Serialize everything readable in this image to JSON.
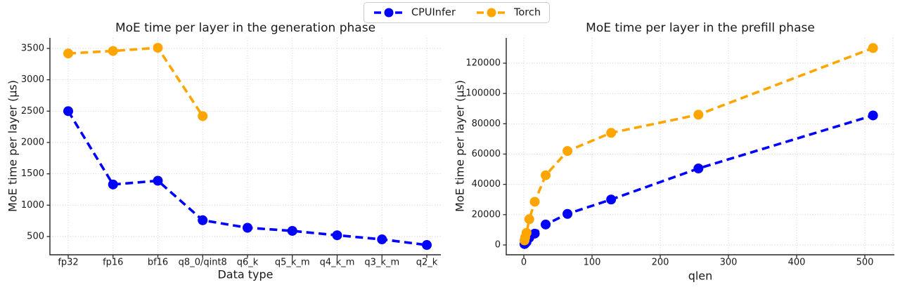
{
  "colors": {
    "cpuinfer": "#0000ff",
    "torch": "#ffa500",
    "grid": "#c9c9c9",
    "spine": "#262626",
    "text": "#1a1a1a"
  },
  "legend": {
    "items": [
      {
        "label": "CPUInfer",
        "color": "#0000ff"
      },
      {
        "label": "Torch",
        "color": "#ffa500"
      }
    ]
  },
  "chart_data": [
    {
      "type": "line",
      "title": "MoE time per layer in the generation phase",
      "xlabel": "Data type",
      "ylabel": "MoE time per layer (μs)",
      "x_type": "categorical",
      "categories": [
        "fp32",
        "fp16",
        "bf16",
        "q8_0/qint8",
        "q6_k",
        "q5_k_m",
        "q4_k_m",
        "q3_k_m",
        "q2_k"
      ],
      "yticks": [
        500,
        1000,
        1500,
        2000,
        2500,
        3000,
        3500
      ],
      "ylim": [
        210,
        3670
      ],
      "grid": true,
      "line_style": "dashed",
      "legend_position": "figure-top-center",
      "series": [
        {
          "name": "CPUInfer",
          "color": "#0000ff",
          "values": [
            2500,
            1330,
            1390,
            760,
            640,
            590,
            520,
            455,
            365
          ]
        },
        {
          "name": "Torch",
          "color": "#ffa500",
          "values": [
            3420,
            3460,
            3510,
            2420,
            null,
            null,
            null,
            null,
            null
          ]
        }
      ]
    },
    {
      "type": "line",
      "title": "MoE time per layer in the prefill phase",
      "xlabel": "qlen",
      "ylabel": "MoE time per layer (μs)",
      "x_type": "numeric",
      "x": [
        1,
        2,
        4,
        8,
        16,
        32,
        64,
        128,
        256,
        512
      ],
      "xticks": [
        0,
        100,
        200,
        300,
        400,
        500
      ],
      "xlim": [
        -26,
        543
      ],
      "yticks": [
        0,
        20000,
        40000,
        60000,
        80000,
        100000,
        120000
      ],
      "ylim": [
        -6500,
        136700
      ],
      "grid": true,
      "line_style": "dashed",
      "series": [
        {
          "name": "CPUInfer",
          "color": "#0000ff",
          "values": [
            600,
            1000,
            2000,
            4800,
            7500,
            13500,
            20500,
            30000,
            50500,
            85500
          ]
        },
        {
          "name": "Torch",
          "color": "#ffa500",
          "values": [
            3000,
            5000,
            8000,
            17000,
            28500,
            46000,
            62000,
            74000,
            86000,
            130000
          ]
        }
      ]
    }
  ]
}
